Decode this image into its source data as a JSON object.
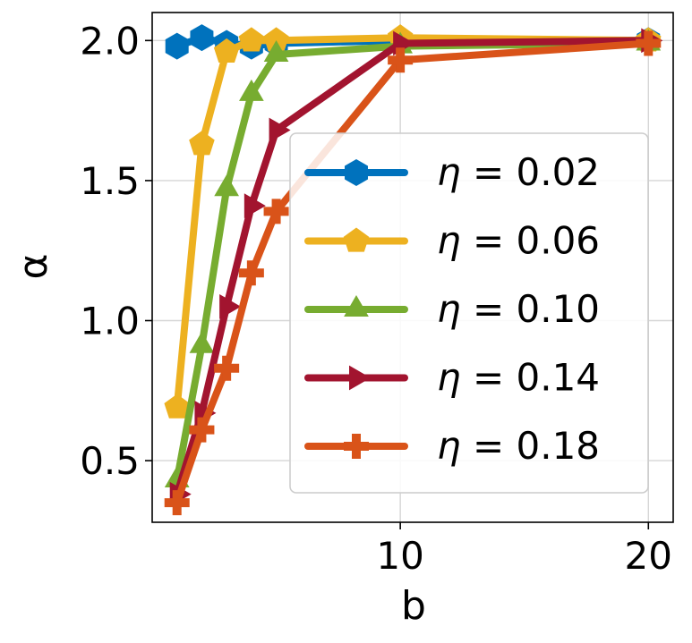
{
  "chart_data": {
    "type": "line",
    "title": "",
    "xlabel": "b",
    "ylabel": "α",
    "xlim": [
      0.0,
      21.0
    ],
    "ylim": [
      0.28,
      2.1
    ],
    "x_ticks": [
      10,
      20
    ],
    "x_tick_labels": [
      "10",
      "20"
    ],
    "y_ticks": [
      0.5,
      1.0,
      1.5,
      2.0
    ],
    "y_tick_labels": [
      "0.5",
      "1.0",
      "1.5",
      "2.0"
    ],
    "grid": true,
    "legend_position": "center-right",
    "series": [
      {
        "name": "η = 0.02",
        "legend_value": "0.02",
        "color": "#0072bd",
        "marker": "hexagon",
        "x": [
          1,
          2,
          3,
          4,
          5,
          10,
          20
        ],
        "y": [
          1.98,
          2.01,
          1.99,
          1.98,
          1.99,
          2.0,
          2.0
        ]
      },
      {
        "name": "η = 0.06",
        "legend_value": "0.06",
        "color": "#edb120",
        "marker": "pentagon",
        "x": [
          1,
          2,
          3,
          4,
          5,
          10,
          20
        ],
        "y": [
          0.69,
          1.63,
          1.96,
          2.0,
          2.0,
          2.01,
          2.0
        ]
      },
      {
        "name": "η = 0.10",
        "legend_value": "0.10",
        "color": "#77ac30",
        "marker": "triangle-up",
        "x": [
          1,
          2,
          3,
          4,
          5,
          10,
          20
        ],
        "y": [
          0.43,
          0.91,
          1.47,
          1.81,
          1.95,
          1.98,
          1.99
        ]
      },
      {
        "name": "η = 0.14",
        "legend_value": "0.14",
        "color": "#a2142f",
        "marker": "triangle-right",
        "x": [
          1,
          2,
          3,
          4,
          5,
          10,
          20
        ],
        "y": [
          0.38,
          0.67,
          1.05,
          1.41,
          1.68,
          1.99,
          2.0
        ]
      },
      {
        "name": "η = 0.18",
        "legend_value": "0.18",
        "color": "#d95319",
        "marker": "plus",
        "x": [
          1,
          2,
          3,
          4,
          5,
          10,
          20
        ],
        "y": [
          0.35,
          0.61,
          0.83,
          1.17,
          1.39,
          1.93,
          1.99
        ]
      }
    ]
  }
}
